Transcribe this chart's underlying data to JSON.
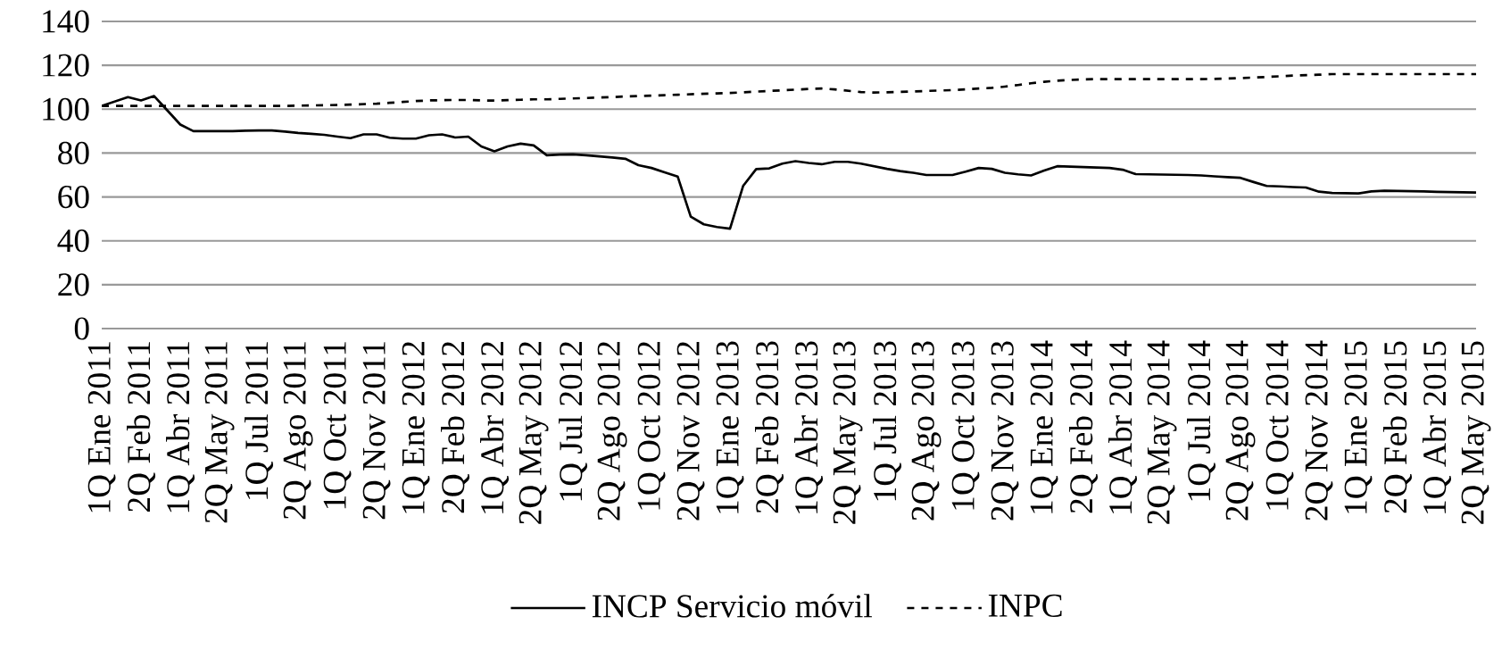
{
  "chart_data": {
    "type": "line",
    "categories": [
      "1Q Ene 2011",
      null,
      null,
      "2Q Feb 2011",
      null,
      null,
      "1Q Abr 2011",
      null,
      null,
      "2Q May 2011",
      null,
      null,
      "1Q Jul 2011",
      null,
      null,
      "2Q Ago 2011",
      null,
      null,
      "1Q Oct 2011",
      null,
      null,
      "2Q Nov 2011",
      null,
      null,
      "1Q Ene 2012",
      null,
      null,
      "2Q Feb 2012",
      null,
      null,
      "1Q Abr 2012",
      null,
      null,
      "2Q May 2012",
      null,
      null,
      "1Q Jul 2012",
      null,
      null,
      "2Q Ago 2012",
      null,
      null,
      "1Q Oct 2012",
      null,
      null,
      "2Q Nov 2012",
      null,
      null,
      "1Q Ene 2013",
      null,
      null,
      "2Q Feb 2013",
      null,
      null,
      "1Q Abr 2013",
      null,
      null,
      "2Q May 2013",
      null,
      null,
      "1Q Jul 2013",
      null,
      null,
      "2Q Ago 2013",
      null,
      null,
      "1Q Oct 2013",
      null,
      null,
      "2Q Nov 2013",
      null,
      null,
      "1Q Ene 2014",
      null,
      null,
      "2Q Feb 2014",
      null,
      null,
      "1Q Abr 2014",
      null,
      null,
      "2Q May 2014",
      null,
      null,
      "1Q Jul 2014",
      null,
      null,
      "2Q Ago 2014",
      null,
      null,
      "1Q Oct 2014",
      null,
      null,
      "2Q Nov 2014",
      null,
      null,
      "1Q Ene 2015",
      null,
      null,
      "2Q Feb 2015",
      null,
      null,
      "1Q Abr 2015",
      null,
      null,
      "2Q May 2015"
    ],
    "series": [
      {
        "name": "INCP Servicio móvil",
        "color": "#000000",
        "line_style": "solid",
        "values": [
          101.5,
          103.5,
          105.5,
          104,
          106,
          99.5,
          93,
          90,
          90,
          90,
          90,
          90.2,
          90.3,
          90.3,
          89.8,
          89.2,
          88.8,
          88.3,
          87.5,
          86.8,
          88.5,
          88.5,
          87,
          86.6,
          86.6,
          88.1,
          88.5,
          87.1,
          87.5,
          83,
          80.8,
          83,
          84.3,
          83.5,
          79,
          79.3,
          79.4,
          79,
          78.5,
          78,
          77.4,
          74.5,
          73.2,
          71.2,
          69.3,
          51,
          47.5,
          46.3,
          45.5,
          65,
          72.7,
          73,
          75.2,
          76.3,
          75.5,
          74.9,
          76,
          76,
          75.2,
          74,
          72.8,
          71.8,
          71,
          70,
          70,
          70,
          71.5,
          73.2,
          72.8,
          71,
          70.3,
          69.8,
          72,
          74,
          73.8,
          73.6,
          73.4,
          73.2,
          72.4,
          70.4,
          70.3,
          70.2,
          70.1,
          70,
          69.8,
          69.4,
          69,
          68.7,
          66.8,
          65,
          64.8,
          64.5,
          64.3,
          62.4,
          61.8,
          61.7,
          61.6,
          62.5,
          62.8,
          62.7,
          62.6,
          62.5,
          62.3,
          62.2,
          62.1,
          62
        ]
      },
      {
        "name": "INPC",
        "color": "#000000",
        "line_style": "dashed",
        "values": [
          101.5,
          101.5,
          101.5,
          101.5,
          101.5,
          101.5,
          101.5,
          101.5,
          101.5,
          101.5,
          101.5,
          101.5,
          101.5,
          101.5,
          101.5,
          101.6,
          101.7,
          101.8,
          101.9,
          102.1,
          102.3,
          102.5,
          102.9,
          103.3,
          103.7,
          104,
          104.1,
          104.2,
          104.2,
          104,
          103.9,
          104.1,
          104.3,
          104.5,
          104.5,
          104.7,
          104.9,
          105.1,
          105.3,
          105.5,
          105.8,
          106,
          106.2,
          106.4,
          106.6,
          106.8,
          107,
          107.2,
          107.4,
          107.7,
          108,
          108.3,
          108.6,
          108.9,
          109.2,
          109.4,
          109,
          108.4,
          107.8,
          107.6,
          107.7,
          107.9,
          108.1,
          108.3,
          108.5,
          108.7,
          109,
          109.4,
          109.7,
          110.3,
          111,
          111.8,
          112.5,
          113,
          113.3,
          113.6,
          113.7,
          113.7,
          113.7,
          113.7,
          113.7,
          113.7,
          113.7,
          113.7,
          113.7,
          113.8,
          114,
          114.2,
          114.4,
          114.7,
          115,
          115.3,
          115.5,
          115.7,
          116,
          116,
          116,
          116,
          116,
          116,
          116,
          116,
          116,
          116,
          116,
          116
        ]
      }
    ],
    "ylim": [
      0,
      140
    ],
    "yticks": [
      0,
      20,
      40,
      60,
      80,
      100,
      120,
      140
    ],
    "grid": "y",
    "legend": "bottom"
  }
}
